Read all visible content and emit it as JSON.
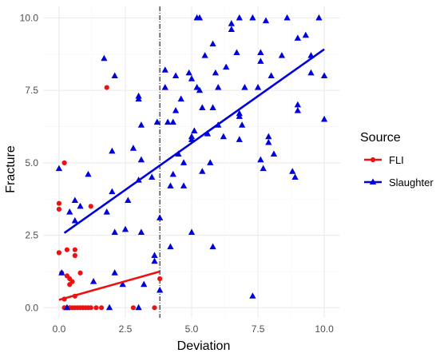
{
  "chart_data": {
    "type": "scatter",
    "title": "",
    "xlabel": "Deviation",
    "ylabel": "Fracture",
    "xlim": [
      -0.6,
      10.6
    ],
    "ylim": [
      -0.35,
      10.4
    ],
    "x_ticks": [
      0,
      2.5,
      5,
      7.5,
      10
    ],
    "x_tick_labels": [
      "0.0",
      "2.5",
      "5.0",
      "7.5",
      "10.0"
    ],
    "y_ticks": [
      0,
      2.5,
      5,
      7.5,
      10
    ],
    "y_tick_labels": [
      "0.0",
      "2.5",
      "5.0",
      "7.5",
      "10.0"
    ],
    "grid": true,
    "vline": {
      "x": 3.8,
      "style": "dotdash",
      "color": "#000000"
    },
    "legend": {
      "title": "Source",
      "position": "right"
    },
    "series": [
      {
        "name": "FLI",
        "color": "#ee1111",
        "marker": "circle",
        "points": [
          [
            0,
            3.6
          ],
          [
            0,
            3.4
          ],
          [
            0,
            1.9
          ],
          [
            0.1,
            1.2
          ],
          [
            0.2,
            5.0
          ],
          [
            0.2,
            0.3
          ],
          [
            0.2,
            0.0
          ],
          [
            0.3,
            2.0
          ],
          [
            0.3,
            1.1
          ],
          [
            0.3,
            0.0
          ],
          [
            0.4,
            1.0
          ],
          [
            0.4,
            0.8
          ],
          [
            0.4,
            0.0
          ],
          [
            0.5,
            0.9
          ],
          [
            0.5,
            0.0
          ],
          [
            0.6,
            2.0
          ],
          [
            0.6,
            1.8
          ],
          [
            0.6,
            0.4
          ],
          [
            0.6,
            0.0
          ],
          [
            0.7,
            0.0
          ],
          [
            0.8,
            1.2
          ],
          [
            0.8,
            0.0
          ],
          [
            0.9,
            0.0
          ],
          [
            1.0,
            0.0
          ],
          [
            1.1,
            0.0
          ],
          [
            1.2,
            3.5
          ],
          [
            1.2,
            0.0
          ],
          [
            1.4,
            0.0
          ],
          [
            1.6,
            0.0
          ],
          [
            1.8,
            7.6
          ],
          [
            2.8,
            0.0
          ],
          [
            3.6,
            0.0
          ],
          [
            3.8,
            1.0
          ]
        ],
        "fit": {
          "x": [
            0,
            3.8
          ],
          "y": [
            0.27,
            1.25
          ]
        }
      },
      {
        "name": "Slaughter",
        "color": "#0000dd",
        "marker": "triangle",
        "points": [
          [
            0,
            4.8
          ],
          [
            0.1,
            1.2
          ],
          [
            0.3,
            0.0
          ],
          [
            0.4,
            3.3
          ],
          [
            0.6,
            3.0
          ],
          [
            0.6,
            3.7
          ],
          [
            0.8,
            3.5
          ],
          [
            1.1,
            4.6
          ],
          [
            1.3,
            0.9
          ],
          [
            1.7,
            8.6
          ],
          [
            1.8,
            3.3
          ],
          [
            2.0,
            5.4
          ],
          [
            2.0,
            4.0
          ],
          [
            2.1,
            8.0
          ],
          [
            2.1,
            2.6
          ],
          [
            2.1,
            1.2
          ],
          [
            1.9,
            0.0
          ],
          [
            2.4,
            0.8
          ],
          [
            2.5,
            2.7
          ],
          [
            2.6,
            3.7
          ],
          [
            2.8,
            5.5
          ],
          [
            3.0,
            7.3
          ],
          [
            3.0,
            7.2
          ],
          [
            3.0,
            4.4
          ],
          [
            3.0,
            0.0
          ],
          [
            3.1,
            6.3
          ],
          [
            3.1,
            5.1
          ],
          [
            3.1,
            2.6
          ],
          [
            3.2,
            0.8
          ],
          [
            3.5,
            4.5
          ],
          [
            3.6,
            1.8
          ],
          [
            3.6,
            1.6
          ],
          [
            3.7,
            6.4
          ],
          [
            3.8,
            3.1
          ],
          [
            3.8,
            0.6
          ],
          [
            4.0,
            8.2
          ],
          [
            4.0,
            7.6
          ],
          [
            4.1,
            6.4
          ],
          [
            4.2,
            4.2
          ],
          [
            4.2,
            2.1
          ],
          [
            4.3,
            6.4
          ],
          [
            4.3,
            4.6
          ],
          [
            4.4,
            6.8
          ],
          [
            4.4,
            8.0
          ],
          [
            4.5,
            5.3
          ],
          [
            4.6,
            7.2
          ],
          [
            4.7,
            5.0
          ],
          [
            4.7,
            4.2
          ],
          [
            4.9,
            8.1
          ],
          [
            5.0,
            7.9
          ],
          [
            5.0,
            5.9
          ],
          [
            5.0,
            5.8
          ],
          [
            5.0,
            2.6
          ],
          [
            5.1,
            6.1
          ],
          [
            5.2,
            7.6
          ],
          [
            5.2,
            10.0
          ],
          [
            5.3,
            10.0
          ],
          [
            5.3,
            7.5
          ],
          [
            5.4,
            6.9
          ],
          [
            5.4,
            4.7
          ],
          [
            5.5,
            8.7
          ],
          [
            5.6,
            6.0
          ],
          [
            5.7,
            5.0
          ],
          [
            5.8,
            6.9
          ],
          [
            5.8,
            9.1
          ],
          [
            5.8,
            2.1
          ],
          [
            5.9,
            8.1
          ],
          [
            6.0,
            7.6
          ],
          [
            6.0,
            6.3
          ],
          [
            6.2,
            5.9
          ],
          [
            6.3,
            8.3
          ],
          [
            6.5,
            9.8
          ],
          [
            6.5,
            9.6
          ],
          [
            6.7,
            8.8
          ],
          [
            6.8,
            5.8
          ],
          [
            6.8,
            6.7
          ],
          [
            6.8,
            6.6
          ],
          [
            6.8,
            10.0
          ],
          [
            6.9,
            6.3
          ],
          [
            7.0,
            7.6
          ],
          [
            7.3,
            10.0
          ],
          [
            7.3,
            0.4
          ],
          [
            7.5,
            7.6
          ],
          [
            7.6,
            5.1
          ],
          [
            7.6,
            8.8
          ],
          [
            7.6,
            8.5
          ],
          [
            7.7,
            4.8
          ],
          [
            7.8,
            9.9
          ],
          [
            7.9,
            5.9
          ],
          [
            7.9,
            5.7
          ],
          [
            8.0,
            8.0
          ],
          [
            8.1,
            5.3
          ],
          [
            8.4,
            8.7
          ],
          [
            8.6,
            10.0
          ],
          [
            8.8,
            4.7
          ],
          [
            8.9,
            4.5
          ],
          [
            9.0,
            7.0
          ],
          [
            9.0,
            6.8
          ],
          [
            9.0,
            9.3
          ],
          [
            9.3,
            9.4
          ],
          [
            9.5,
            8.1
          ],
          [
            9.5,
            8.7
          ],
          [
            9.8,
            10.0
          ],
          [
            10.0,
            8.0
          ],
          [
            10.0,
            6.5
          ]
        ],
        "fit": {
          "x": [
            0.2,
            10.0
          ],
          "y": [
            2.58,
            8.92
          ]
        }
      }
    ]
  },
  "colors": {
    "panel_bg": "#ffffff",
    "grid_major": "#ebebeb",
    "grid_minor": "#f5f5f5"
  }
}
